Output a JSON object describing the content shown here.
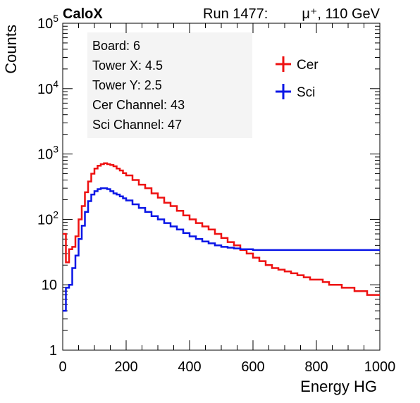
{
  "header": {
    "experiment": "CaloX",
    "run_info": "Run 1477:",
    "particle": "μ⁺, 110 GeV"
  },
  "info_box": {
    "lines": [
      "Board: 6",
      "Tower X: 4.5",
      "Tower Y: 2.5",
      "Cer Channel: 43",
      "Sci Channel: 47"
    ]
  },
  "colors": {
    "cer": "#ee1111",
    "sci": "#0a16e6"
  },
  "chart_data": {
    "type": "line",
    "xlabel": "Energy HG",
    "ylabel": "Counts",
    "xlim": [
      0,
      1000
    ],
    "ylim": [
      1,
      100000
    ],
    "yscale": "log",
    "x_ticks": [
      0,
      200,
      400,
      600,
      800,
      1000
    ],
    "x_tick_labels": [
      "0",
      "200",
      "400",
      "600",
      "800",
      "1000"
    ],
    "y_ticks": [
      1,
      10,
      100,
      1000,
      10000,
      100000
    ],
    "y_tick_labels": [
      {
        "base": "1",
        "exp": ""
      },
      {
        "base": "10",
        "exp": ""
      },
      {
        "base": "10",
        "exp": "2"
      },
      {
        "base": "10",
        "exp": "3"
      },
      {
        "base": "10",
        "exp": "4"
      },
      {
        "base": "10",
        "exp": "5"
      }
    ],
    "legend_position": "top-right",
    "series": [
      {
        "name": "Cer",
        "color": "#ee1111",
        "x": [
          0,
          10,
          20,
          30,
          40,
          50,
          60,
          70,
          80,
          90,
          100,
          110,
          120,
          130,
          140,
          150,
          160,
          170,
          180,
          190,
          200,
          220,
          240,
          260,
          280,
          300,
          320,
          340,
          360,
          380,
          400,
          420,
          440,
          460,
          480,
          500,
          520,
          540,
          560,
          580,
          600,
          620,
          640,
          660,
          680,
          700,
          720,
          740,
          760,
          780,
          800,
          820,
          840,
          860,
          880,
          900,
          920,
          940,
          960,
          980,
          1000
        ],
        "y": [
          60,
          22,
          35,
          38,
          55,
          100,
          160,
          260,
          380,
          500,
          600,
          660,
          700,
          720,
          700,
          680,
          650,
          600,
          560,
          510,
          470,
          400,
          340,
          300,
          250,
          215,
          180,
          160,
          135,
          115,
          100,
          88,
          78,
          70,
          60,
          52,
          45,
          40,
          34,
          30,
          26,
          23,
          20,
          18,
          17,
          16,
          15,
          14,
          13,
          12,
          12,
          11,
          10,
          10,
          9,
          9,
          8,
          8,
          7,
          7,
          7
        ]
      },
      {
        "name": "Sci",
        "color": "#0a16e6",
        "x": [
          0,
          10,
          20,
          30,
          40,
          50,
          60,
          70,
          80,
          90,
          100,
          110,
          120,
          130,
          140,
          150,
          160,
          170,
          180,
          190,
          200,
          220,
          240,
          260,
          280,
          300,
          320,
          340,
          360,
          380,
          400,
          420,
          440,
          460,
          480,
          500,
          520,
          540,
          560,
          580,
          600,
          620,
          640,
          660,
          680,
          700,
          720,
          740,
          760,
          780,
          800,
          820,
          840,
          860,
          880,
          900,
          920,
          940,
          960,
          980,
          1000
        ],
        "y": [
          4,
          9,
          10,
          18,
          28,
          50,
          80,
          130,
          190,
          240,
          270,
          290,
          300,
          300,
          290,
          270,
          250,
          240,
          225,
          210,
          195,
          170,
          150,
          130,
          112,
          100,
          88,
          78,
          70,
          62,
          55,
          50,
          46,
          43,
          40,
          38,
          37,
          36,
          35,
          35,
          34,
          34,
          34,
          34,
          34,
          34,
          34,
          34,
          34,
          34,
          34,
          34,
          34,
          34,
          34,
          34,
          34,
          34,
          34,
          34,
          34
        ]
      }
    ]
  }
}
